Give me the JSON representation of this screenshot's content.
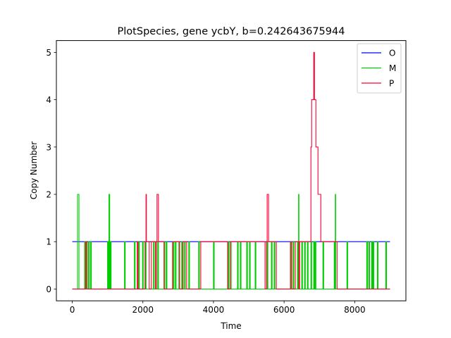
{
  "chart_data": {
    "type": "line",
    "title": "PlotSpecies, gene ycbY, b=0.242643675944",
    "xlabel": "Time",
    "ylabel": "Copy Number",
    "xlim": [
      -450,
      9450
    ],
    "ylim": [
      -0.25,
      5.25
    ],
    "xticks": [
      0,
      2000,
      4000,
      6000,
      8000
    ],
    "yticks": [
      0,
      1,
      2,
      3,
      4,
      5
    ],
    "legend_position": "upper right",
    "series": [
      {
        "name": "O",
        "color": "#0000ff",
        "step": true,
        "x": [
          0,
          9000
        ],
        "y": [
          1,
          1
        ]
      },
      {
        "name": "M",
        "color": "#00cc00",
        "step": true,
        "x": [
          0,
          150,
          160,
          180,
          190,
          350,
          370,
          400,
          420,
          460,
          480,
          520,
          540,
          1000,
          1020,
          1040,
          1060,
          1080,
          1100,
          1480,
          1500,
          1760,
          1780,
          1880,
          1900,
          1990,
          2010,
          2070,
          2090,
          2300,
          2320,
          2360,
          2380,
          2420,
          2440,
          2600,
          2620,
          2660,
          2680,
          2860,
          2880,
          2920,
          2940,
          3020,
          3040,
          3100,
          3120,
          3180,
          3200,
          3300,
          3320,
          3580,
          3600,
          4000,
          4020,
          4420,
          4440,
          4480,
          4500,
          4680,
          4700,
          4760,
          4780,
          4940,
          4960,
          5020,
          5040,
          5180,
          5200,
          5520,
          5540,
          5640,
          5660,
          5720,
          5740,
          6180,
          6200,
          6260,
          6280,
          6380,
          6400,
          6410,
          6420,
          6500,
          6520,
          6580,
          6600,
          6660,
          6680,
          6760,
          6780,
          6840,
          6860,
          6880,
          6900,
          7100,
          7120,
          7420,
          7440,
          7450,
          7460,
          7780,
          7800,
          8340,
          8360,
          8400,
          8420,
          8480,
          8500,
          8520,
          8540,
          8640,
          8660,
          8880,
          8900,
          9000
        ],
        "y": [
          0,
          2,
          2,
          2,
          0,
          1,
          0,
          1,
          0,
          1,
          0,
          1,
          0,
          1,
          0,
          2,
          0,
          1,
          0,
          1,
          0,
          1,
          0,
          1,
          0,
          1,
          0,
          1,
          0,
          1,
          0,
          1,
          0,
          1,
          0,
          1,
          0,
          1,
          0,
          1,
          0,
          1,
          0,
          1,
          0,
          1,
          0,
          1,
          0,
          1,
          0,
          1,
          0,
          1,
          0,
          1,
          0,
          1,
          0,
          1,
          0,
          1,
          0,
          1,
          0,
          1,
          0,
          1,
          0,
          1,
          0,
          1,
          0,
          1,
          0,
          1,
          0,
          1,
          0,
          1,
          0,
          2,
          0,
          1,
          0,
          1,
          0,
          1,
          0,
          1,
          0,
          1,
          0,
          1,
          0,
          1,
          0,
          1,
          0,
          2,
          0,
          1,
          0,
          1,
          0,
          1,
          0,
          1,
          0,
          1,
          0,
          1,
          0,
          1,
          0,
          0
        ]
      },
      {
        "name": "P",
        "color": "#ff0033",
        "step": true,
        "x": [
          0,
          380,
          420,
          1840,
          1860,
          2060,
          2090,
          2100,
          2180,
          2240,
          2360,
          2380,
          2400,
          2440,
          2600,
          2840,
          3040,
          3140,
          3240,
          3640,
          4400,
          4480,
          5460,
          5500,
          5520,
          5560,
          5780,
          6180,
          6220,
          6320,
          6420,
          6440,
          6760,
          6780,
          6820,
          6840,
          6860,
          6880,
          6900,
          6960,
          7040,
          7500,
          7560,
          9000
        ],
        "y": [
          0,
          1,
          0,
          1,
          0,
          1,
          2,
          1,
          0,
          1,
          0,
          1,
          2,
          1,
          0,
          1,
          0,
          1,
          0,
          1,
          0,
          1,
          0,
          1,
          2,
          1,
          0,
          1,
          0,
          1,
          0,
          1,
          3,
          4,
          4,
          5,
          4,
          4,
          3,
          2,
          1,
          0,
          0,
          0
        ]
      }
    ]
  }
}
